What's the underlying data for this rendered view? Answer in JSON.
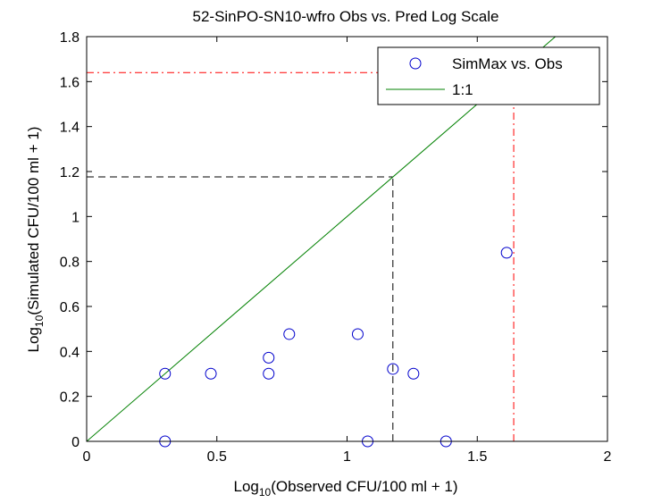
{
  "chart_data": {
    "type": "scatter",
    "title": "52-SinPO-SN10-wfro Obs vs. Pred Log Scale",
    "xlabel": {
      "prefix": "Log",
      "sub": "10",
      "rest": "(Observed CFU/100 ml + 1)"
    },
    "ylabel": {
      "prefix": "Log",
      "sub": "10",
      "rest": "(Simulated CFU/100 ml + 1)"
    },
    "xlim": [
      0,
      2
    ],
    "ylim": [
      0,
      1.8
    ],
    "xticks": [
      0,
      0.5,
      1,
      1.5,
      2
    ],
    "xtick_labels": [
      "0",
      "0.5",
      "1",
      "1.5",
      "2"
    ],
    "yticks": [
      0,
      0.2,
      0.4,
      0.6,
      0.8,
      1,
      1.2,
      1.4,
      1.6,
      1.8
    ],
    "ytick_labels": [
      "0",
      "0.2",
      "0.4",
      "0.6",
      "0.8",
      "1",
      "1.2",
      "1.4",
      "1.6",
      "1.8"
    ],
    "grid": false,
    "legend_position": "top-right",
    "series": [
      {
        "name": "SimMax vs. Obs",
        "kind": "markers",
        "marker": "circle",
        "color": "#0000cc",
        "x": [
          0.301,
          0.301,
          0.477,
          0.699,
          0.699,
          0.778,
          1.041,
          1.176,
          1.255,
          1.613,
          1.079,
          1.38
        ],
        "y": [
          0.301,
          0.0,
          0.301,
          0.301,
          0.372,
          0.477,
          0.477,
          0.322,
          0.301,
          0.839,
          0.0,
          0.0
        ]
      },
      {
        "name": "1:1",
        "kind": "line",
        "color": "#008000",
        "x": [
          0,
          1.8
        ],
        "y": [
          0,
          1.8
        ]
      }
    ],
    "reference_lines": [
      {
        "style": "dashed",
        "color": "#000000",
        "x": 1.176,
        "y": 1.176
      },
      {
        "style": "dashdot",
        "color": "#ff0000",
        "x": 1.64,
        "y": 1.64
      }
    ]
  }
}
